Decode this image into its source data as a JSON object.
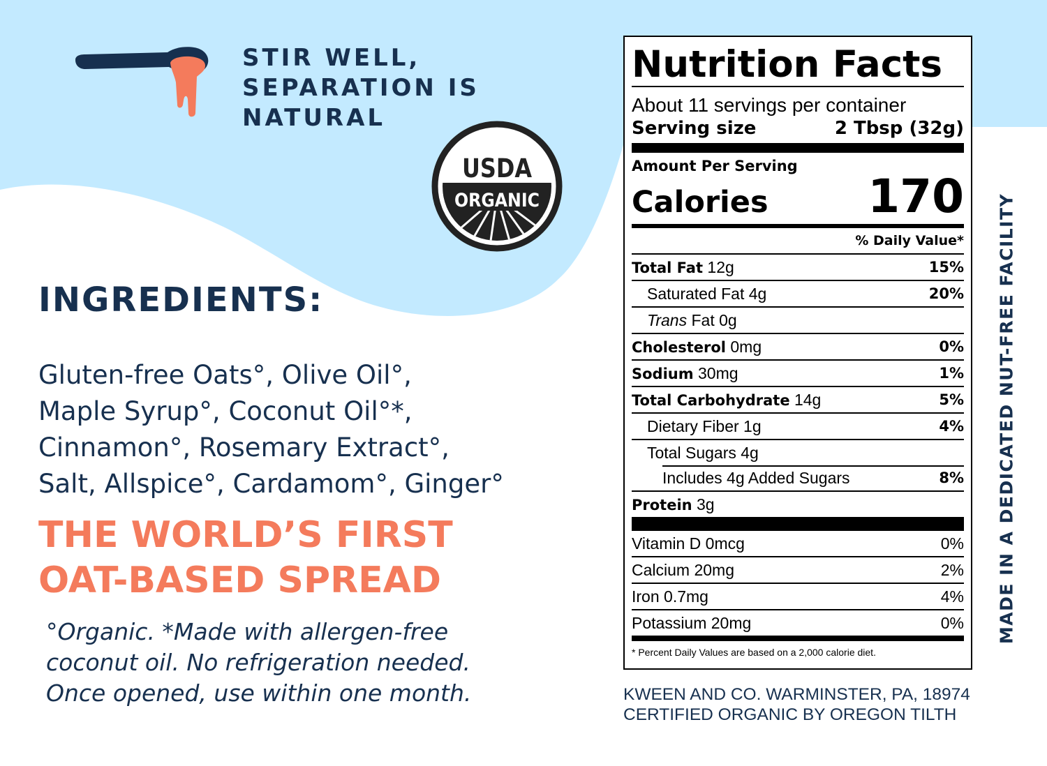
{
  "colors": {
    "sky": "#c3eaff",
    "navy": "#17304f",
    "coral": "#f47b5c"
  },
  "stir": {
    "lines": [
      "STIR WELL,",
      "SEPARATION IS",
      "NATURAL"
    ]
  },
  "usda": {
    "top": "USDA",
    "bottom": "ORGANIC"
  },
  "ingredients": {
    "title": "INGREDIENTS:",
    "lines": [
      "Gluten-free Oats°, Olive Oil°,",
      "Maple Syrup°, Coconut Oil°*,",
      "Cinnamon°, Rosemary Extract°,",
      "Salt, Allspice°, Cardamom°, Ginger°"
    ]
  },
  "tagline": {
    "lines": [
      "THE WORLD’S FIRST",
      "OAT-BASED SPREAD"
    ]
  },
  "note": {
    "lines": [
      "°Organic. *Made with allergen-free",
      "coconut oil. No refrigeration needed.",
      "Once opened, use within one month."
    ]
  },
  "nutrition": {
    "title": "Nutrition Facts",
    "servings": "About 11 servings per container",
    "serving_size_label": "Serving size",
    "serving_size_value": "2 Tbsp (32g)",
    "amount_per_serving": "Amount Per Serving",
    "calories_label": "Calories",
    "calories_value": "170",
    "dv_header": "% Daily Value*",
    "rows": {
      "total_fat": {
        "label": "Total Fat",
        "amount": "12g",
        "dv": "15%"
      },
      "saturated_fat": {
        "label": "Saturated Fat 4g",
        "dv": "20%"
      },
      "trans_fat": {
        "label_italic": "Trans",
        "label_rest": "Fat 0g"
      },
      "cholesterol": {
        "label": "Cholesterol",
        "amount": "0mg",
        "dv": "0%"
      },
      "sodium": {
        "label": "Sodium",
        "amount": "30mg",
        "dv": "1%"
      },
      "total_carb": {
        "label": "Total Carbohydrate",
        "amount": "14g",
        "dv": "5%"
      },
      "fiber": {
        "label": "Dietary Fiber 1g",
        "dv": "4%"
      },
      "sugars": {
        "label": "Total Sugars 4g"
      },
      "added_sugars": {
        "label": "Includes 4g Added Sugars",
        "dv": "8%"
      },
      "protein": {
        "label": "Protein",
        "amount": "3g"
      }
    },
    "vitamins": [
      {
        "label": "Vitamin D 0mcg",
        "dv": "0%"
      },
      {
        "label": "Calcium 20mg",
        "dv": "2%"
      },
      {
        "label": "Iron 0.7mg",
        "dv": "4%"
      },
      {
        "label": "Potassium 20mg",
        "dv": "0%"
      }
    ],
    "footnote": "* Percent Daily Values are based on a 2,000 calorie diet."
  },
  "company": {
    "lines": [
      "KWEEN AND CO. WARMINSTER, PA, 18974",
      "CERTIFIED ORGANIC BY OREGON TILTH"
    ]
  },
  "side_text": "MADE IN A DEDICATED NUT-FREE FACILITY"
}
